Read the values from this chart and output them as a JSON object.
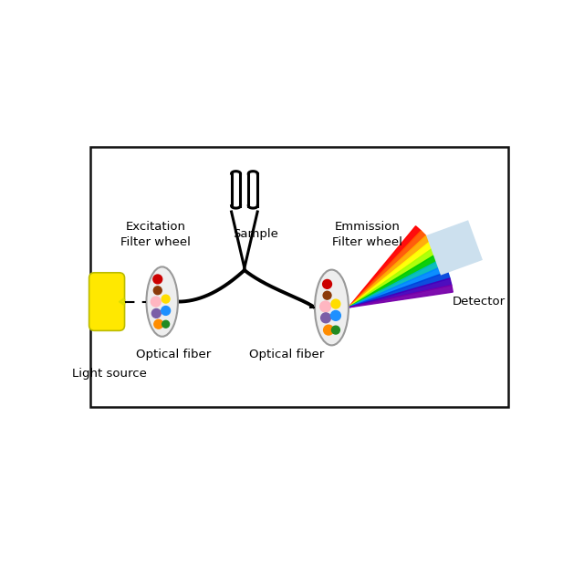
{
  "bg_color": "#ffffff",
  "box_color": "#111111",
  "light_source_color": "#FFE800",
  "light_source_outline": "#bbbb00",
  "rainbow_colors": [
    "#FF0000",
    "#FF5500",
    "#FFAA00",
    "#FFFF00",
    "#AAFF00",
    "#00CC00",
    "#00BBBB",
    "#0088FF",
    "#0044DD",
    "#4400BB",
    "#7700AA"
  ],
  "detector_color": "#cce0ee",
  "detector_outline": "#444444",
  "labels": {
    "light_source": "Light source",
    "excitation": "Excitation\nFilter wheel",
    "optical_fiber_1": "Optical fiber",
    "sample": "Sample",
    "optical_fiber_2": "Optical fiber",
    "emmission": "Emmission\nFilter wheel",
    "detector": "Detector"
  },
  "font_size": 9.5,
  "line_color": "#000000",
  "line_width": 2.8
}
